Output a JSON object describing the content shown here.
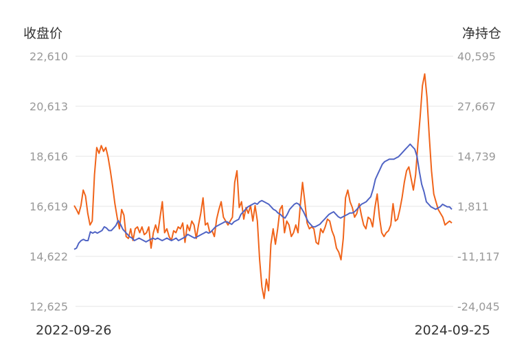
{
  "chart_data": {
    "type": "line",
    "left_axis_title": "收盘价",
    "right_axis_title": "净持仓",
    "left_ticks": [
      "22,610",
      "20,613",
      "18,616",
      "16,619",
      "14,622",
      "12,625"
    ],
    "right_ticks": [
      "40,595",
      "27,667",
      "14,739",
      "1,811",
      "-11,117",
      "-24,045"
    ],
    "left_range": [
      12625,
      22610
    ],
    "right_range": [
      -24045,
      40595
    ],
    "x_start_label": "2022-09-26",
    "x_end_label": "2024-09-25",
    "grid": "horizontal",
    "series": [
      {
        "axis": "left",
        "color": "#4f63c4",
        "values": [
          14900,
          14950,
          15150,
          15250,
          15300,
          15250,
          15250,
          15600,
          15550,
          15600,
          15550,
          15600,
          15650,
          15800,
          15750,
          15650,
          15650,
          15750,
          15850,
          16050,
          15900,
          15700,
          15600,
          15500,
          15400,
          15350,
          15250,
          15300,
          15350,
          15300,
          15250,
          15200,
          15250,
          15300,
          15350,
          15300,
          15350,
          15300,
          15250,
          15300,
          15350,
          15300,
          15250,
          15300,
          15350,
          15250,
          15300,
          15350,
          15400,
          15500,
          15450,
          15400,
          15350,
          15400,
          15450,
          15500,
          15550,
          15600,
          15550,
          15600,
          15700,
          15800,
          15850,
          15900,
          15950,
          16000,
          16000,
          15950,
          15900,
          16000,
          16050,
          16100,
          16300,
          16400,
          16500,
          16600,
          16650,
          16700,
          16750,
          16700,
          16800,
          16850,
          16800,
          16750,
          16700,
          16600,
          16500,
          16450,
          16350,
          16300,
          16200,
          16150,
          16300,
          16500,
          16600,
          16700,
          16750,
          16700,
          16550,
          16400,
          16200,
          16000,
          15900,
          15800,
          15800,
          15850,
          15900,
          16000,
          16100,
          16200,
          16300,
          16350,
          16400,
          16300,
          16200,
          16150,
          16200,
          16250,
          16300,
          16350,
          16350,
          16400,
          16500,
          16600,
          16700,
          16750,
          16800,
          16900,
          17000,
          17300,
          17700,
          17900,
          18100,
          18300,
          18400,
          18450,
          18500,
          18500,
          18500,
          18550,
          18600,
          18700,
          18800,
          18900,
          19000,
          19100,
          19000,
          18900,
          18600,
          18000,
          17500,
          17200,
          16800,
          16700,
          16600,
          16550,
          16500,
          16550,
          16600,
          16700,
          16650,
          16600,
          16600,
          16500
        ]
      },
      {
        "axis": "right",
        "color": "#f06319",
        "values": [
          2000,
          1000,
          -200,
          2000,
          6000,
          4500,
          0,
          -3000,
          -2000,
          10000,
          17000,
          15500,
          17500,
          16000,
          17000,
          14500,
          11000,
          7000,
          2500,
          -1000,
          -4000,
          1000,
          -500,
          -6000,
          -6500,
          -4000,
          -7000,
          -4000,
          -3500,
          -5000,
          -3500,
          -5500,
          -5000,
          -3500,
          -9000,
          -5000,
          -3000,
          -5000,
          -1000,
          3000,
          -5000,
          -4000,
          -6000,
          -7000,
          -4500,
          -5000,
          -3500,
          -4000,
          -2500,
          -7500,
          -3000,
          -4500,
          -2000,
          -3000,
          -6500,
          -3000,
          0,
          4000,
          -3000,
          -2500,
          -5000,
          -4500,
          -6000,
          -1500,
          1000,
          3000,
          -1000,
          -2000,
          -3000,
          -2000,
          -1000,
          8000,
          11000,
          1500,
          3000,
          -1500,
          1500,
          0,
          2000,
          -2000,
          2000,
          -2000,
          -12000,
          -19000,
          -22000,
          -17000,
          -20000,
          -8000,
          -4000,
          -8000,
          -4000,
          1000,
          2000,
          -5000,
          -2000,
          -3000,
          -6000,
          -5000,
          -3000,
          -5000,
          2000,
          8000,
          3000,
          -2500,
          -4000,
          -3500,
          -4000,
          -7500,
          -8000,
          -4000,
          -5000,
          -3500,
          -1500,
          -2000,
          -4500,
          -6000,
          -9000,
          -10000,
          -12000,
          -6500,
          4000,
          6000,
          3000,
          1500,
          -1000,
          0,
          2500,
          -500,
          -3000,
          -4000,
          -1000,
          -1500,
          -3500,
          1500,
          5000,
          -1000,
          -5000,
          -6000,
          -5000,
          -4500,
          -3000,
          2500,
          -2000,
          -1500,
          1000,
          4000,
          8000,
          11000,
          12000,
          9000,
          6000,
          10000,
          18000,
          25000,
          33000,
          36000,
          30000,
          20000,
          11000,
          5000,
          3000,
          1000,
          0,
          -1000,
          -3000,
          -2500,
          -2000,
          -2500
        ]
      }
    ]
  }
}
